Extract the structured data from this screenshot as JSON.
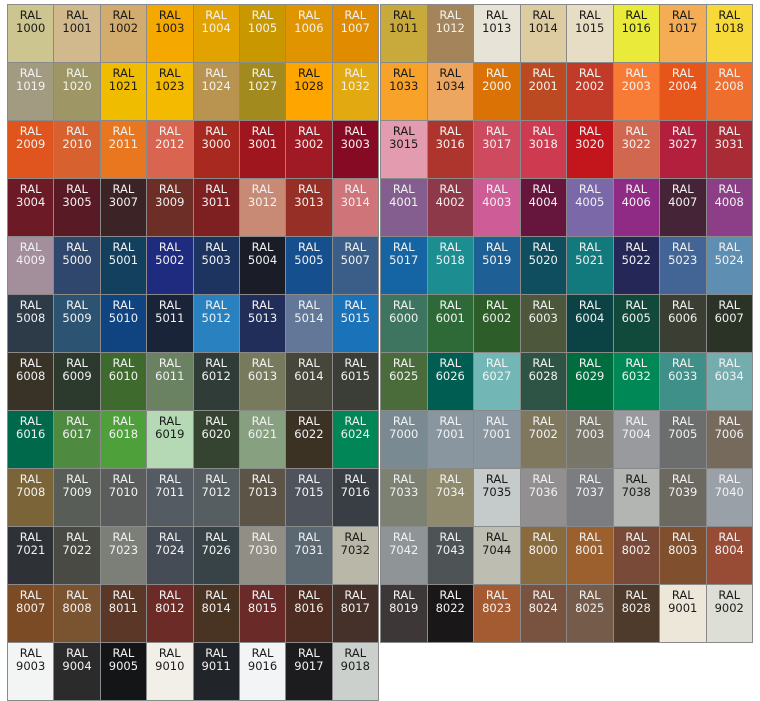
{
  "prefix": "RAL",
  "left_panel": [
    [
      {
        "c": "1000",
        "bg": "#CCC58F",
        "t": "dark"
      },
      {
        "c": "1001",
        "bg": "#D1B98D",
        "t": "dark"
      },
      {
        "c": "1002",
        "bg": "#D2AB6E",
        "t": "dark"
      },
      {
        "c": "1003",
        "bg": "#F5A800",
        "t": "dark"
      },
      {
        "c": "1004",
        "bg": "#E2A300",
        "t": "light"
      },
      {
        "c": "1005",
        "bg": "#C99700",
        "t": "light"
      },
      {
        "c": "1006",
        "bg": "#E09500",
        "t": "light"
      },
      {
        "c": "1007",
        "bg": "#E08B00",
        "t": "light"
      }
    ],
    [
      {
        "c": "1019",
        "bg": "#A39A82",
        "t": "light"
      },
      {
        "c": "1020",
        "bg": "#9E9664",
        "t": "light"
      },
      {
        "c": "1021",
        "bg": "#F0BC00",
        "t": "dark"
      },
      {
        "c": "1023",
        "bg": "#F3BA00",
        "t": "dark"
      },
      {
        "c": "1024",
        "bg": "#B99350",
        "t": "light"
      },
      {
        "c": "1027",
        "bg": "#A38A1E",
        "t": "light"
      },
      {
        "c": "1028",
        "bg": "#FFA500",
        "t": "dark"
      },
      {
        "c": "1032",
        "bg": "#E2A910",
        "t": "light"
      }
    ],
    [
      {
        "c": "2009",
        "bg": "#E0551D",
        "t": "light"
      },
      {
        "c": "2010",
        "bg": "#D8622F",
        "t": "light"
      },
      {
        "c": "2011",
        "bg": "#E9771F",
        "t": "light"
      },
      {
        "c": "2012",
        "bg": "#D9644F",
        "t": "light"
      },
      {
        "c": "3000",
        "bg": "#A72920",
        "t": "light"
      },
      {
        "c": "3001",
        "bg": "#A0161F",
        "t": "light"
      },
      {
        "c": "3002",
        "bg": "#A01A25",
        "t": "light"
      },
      {
        "c": "3003",
        "bg": "#870A24",
        "t": "light"
      }
    ],
    [
      {
        "c": "3004",
        "bg": "#6B1A26",
        "t": "light"
      },
      {
        "c": "3005",
        "bg": "#581A25",
        "t": "light"
      },
      {
        "c": "3007",
        "bg": "#3C2325",
        "t": "light"
      },
      {
        "c": "3009",
        "bg": "#6C2E27",
        "t": "light"
      },
      {
        "c": "3011",
        "bg": "#7E1F21",
        "t": "light"
      },
      {
        "c": "3012",
        "bg": "#C88A74",
        "t": "light"
      },
      {
        "c": "3013",
        "bg": "#962F25",
        "t": "light"
      },
      {
        "c": "3014",
        "bg": "#CF7479",
        "t": "light"
      }
    ],
    [
      {
        "c": "4009",
        "bg": "#A38E9C",
        "t": "light"
      },
      {
        "c": "5000",
        "bg": "#30476D",
        "t": "light"
      },
      {
        "c": "5001",
        "bg": "#13405E",
        "t": "light"
      },
      {
        "c": "5002",
        "bg": "#1E2B7E",
        "t": "light"
      },
      {
        "c": "5003",
        "bg": "#1D3461",
        "t": "light"
      },
      {
        "c": "5004",
        "bg": "#1A1D28",
        "t": "light"
      },
      {
        "c": "5005",
        "bg": "#154F8E",
        "t": "light"
      },
      {
        "c": "5007",
        "bg": "#3B5E88",
        "t": "light"
      }
    ],
    [
      {
        "c": "5008",
        "bg": "#2D3B49",
        "t": "light"
      },
      {
        "c": "5009",
        "bg": "#2C5472",
        "t": "light"
      },
      {
        "c": "5010",
        "bg": "#0F4480",
        "t": "light"
      },
      {
        "c": "5011",
        "bg": "#1A2439",
        "t": "light"
      },
      {
        "c": "5012",
        "bg": "#2981C0",
        "t": "light"
      },
      {
        "c": "5013",
        "bg": "#212E5A",
        "t": "light"
      },
      {
        "c": "5014",
        "bg": "#637899",
        "t": "light"
      },
      {
        "c": "5015",
        "bg": "#1A73B9",
        "t": "light"
      }
    ],
    [
      {
        "c": "6008",
        "bg": "#393327",
        "t": "light"
      },
      {
        "c": "6009",
        "bg": "#2C3A2E",
        "t": "light"
      },
      {
        "c": "6010",
        "bg": "#3E6A2D",
        "t": "light"
      },
      {
        "c": "6011",
        "bg": "#6A8261",
        "t": "light"
      },
      {
        "c": "6012",
        "bg": "#303C37",
        "t": "light"
      },
      {
        "c": "6013",
        "bg": "#787A5E",
        "t": "light"
      },
      {
        "c": "6014",
        "bg": "#46473A",
        "t": "light"
      },
      {
        "c": "6015",
        "bg": "#3B3E36",
        "t": "light"
      }
    ],
    [
      {
        "c": "6016",
        "bg": "#00694C",
        "t": "light"
      },
      {
        "c": "6017",
        "bg": "#4E8A40",
        "t": "light"
      },
      {
        "c": "6018",
        "bg": "#4EA03A",
        "t": "light"
      },
      {
        "c": "6019",
        "bg": "#B4D9B4",
        "t": "dark"
      },
      {
        "c": "6020",
        "bg": "#354431",
        "t": "light"
      },
      {
        "c": "6021",
        "bg": "#87A080",
        "t": "light"
      },
      {
        "c": "6022",
        "bg": "#3B3224",
        "t": "light"
      },
      {
        "c": "6024",
        "bg": "#008657",
        "t": "light"
      }
    ],
    [
      {
        "c": "7008",
        "bg": "#7B6538",
        "t": "light"
      },
      {
        "c": "7009",
        "bg": "#585D57",
        "t": "light"
      },
      {
        "c": "7010",
        "bg": "#5A5D5C",
        "t": "light"
      },
      {
        "c": "7011",
        "bg": "#545B63",
        "t": "light"
      },
      {
        "c": "7012",
        "bg": "#575E62",
        "t": "light"
      },
      {
        "c": "7013",
        "bg": "#5B5447",
        "t": "light"
      },
      {
        "c": "7015",
        "bg": "#4F535C",
        "t": "light"
      },
      {
        "c": "7016",
        "bg": "#383E44",
        "t": "light"
      }
    ],
    [
      {
        "c": "7021",
        "bg": "#2E3236",
        "t": "light"
      },
      {
        "c": "7022",
        "bg": "#4A4A45",
        "t": "light"
      },
      {
        "c": "7023",
        "bg": "#7C7F78",
        "t": "light"
      },
      {
        "c": "7024",
        "bg": "#464C55",
        "t": "light"
      },
      {
        "c": "7026",
        "bg": "#384348",
        "t": "light"
      },
      {
        "c": "7030",
        "bg": "#918E85",
        "t": "light"
      },
      {
        "c": "7031",
        "bg": "#5B6872",
        "t": "light"
      },
      {
        "c": "7032",
        "bg": "#B9B7A7",
        "t": "dark"
      }
    ],
    [
      {
        "c": "8007",
        "bg": "#7A4B25",
        "t": "light"
      },
      {
        "c": "8008",
        "bg": "#7A5430",
        "t": "light"
      },
      {
        "c": "8011",
        "bg": "#5A3726",
        "t": "light"
      },
      {
        "c": "8012",
        "bg": "#6C2B27",
        "t": "light"
      },
      {
        "c": "8014",
        "bg": "#493423",
        "t": "light"
      },
      {
        "c": "8015",
        "bg": "#6A2A27",
        "t": "light"
      },
      {
        "c": "8016",
        "bg": "#4D2C22",
        "t": "light"
      },
      {
        "c": "8017",
        "bg": "#45302A",
        "t": "light"
      }
    ],
    [
      {
        "c": "9003",
        "bg": "#F3F4F4",
        "t": "dark"
      },
      {
        "c": "9004",
        "bg": "#2B2B2C",
        "t": "light"
      },
      {
        "c": "9005",
        "bg": "#131517",
        "t": "light"
      },
      {
        "c": "9010",
        "bg": "#F1EFE7",
        "t": "dark"
      },
      {
        "c": "9011",
        "bg": "#212428",
        "t": "light"
      },
      {
        "c": "9016",
        "bg": "#F2F4F5",
        "t": "dark"
      },
      {
        "c": "9017",
        "bg": "#1C1C1E",
        "t": "light"
      },
      {
        "c": "9018",
        "bg": "#CBD0CD",
        "t": "dark"
      }
    ]
  ],
  "right_panel": [
    [
      {
        "c": "1011",
        "bg": "#C7A93C",
        "t": "dark"
      },
      {
        "c": "1012",
        "bg": "#A4845A",
        "t": "light"
      },
      {
        "c": "1013",
        "bg": "#E7E3D6",
        "t": "dark"
      },
      {
        "c": "1014",
        "bg": "#DDCBA2",
        "t": "dark"
      },
      {
        "c": "1015",
        "bg": "#E7DCC4",
        "t": "dark"
      },
      {
        "c": "1016",
        "bg": "#EAEA3A",
        "t": "dark"
      },
      {
        "c": "1017",
        "bg": "#F5AD55",
        "t": "dark"
      },
      {
        "c": "1018",
        "bg": "#F8D93A",
        "t": "dark"
      }
    ],
    [
      {
        "c": "1033",
        "bg": "#F9A22A",
        "t": "dark"
      },
      {
        "c": "1034",
        "bg": "#EDA65F",
        "t": "dark"
      },
      {
        "c": "2000",
        "bg": "#DA7206",
        "t": "light"
      },
      {
        "c": "2001",
        "bg": "#BB4A22",
        "t": "light"
      },
      {
        "c": "2002",
        "bg": "#C23A28",
        "t": "light"
      },
      {
        "c": "2003",
        "bg": "#F77B35",
        "t": "light"
      },
      {
        "c": "2004",
        "bg": "#E65519",
        "t": "light"
      },
      {
        "c": "2008",
        "bg": "#EE6E2D",
        "t": "light"
      }
    ],
    [
      {
        "c": "3015",
        "bg": "#E39BAF",
        "t": "dark"
      },
      {
        "c": "3016",
        "bg": "#AE352D",
        "t": "light"
      },
      {
        "c": "3017",
        "bg": "#CE4A5E",
        "t": "light"
      },
      {
        "c": "3018",
        "bg": "#CE3A4F",
        "t": "light"
      },
      {
        "c": "3020",
        "bg": "#C3161C",
        "t": "light"
      },
      {
        "c": "3022",
        "bg": "#D26750",
        "t": "light"
      },
      {
        "c": "3027",
        "bg": "#B3203E",
        "t": "light"
      },
      {
        "c": "3031",
        "bg": "#A82B35",
        "t": "light"
      }
    ],
    [
      {
        "c": "4001",
        "bg": "#845E8F",
        "t": "light"
      },
      {
        "c": "4002",
        "bg": "#8E3949",
        "t": "light"
      },
      {
        "c": "4003",
        "bg": "#CE5C96",
        "t": "light"
      },
      {
        "c": "4004",
        "bg": "#66163D",
        "t": "light"
      },
      {
        "c": "4005",
        "bg": "#7B68A8",
        "t": "light"
      },
      {
        "c": "4006",
        "bg": "#8F2B84",
        "t": "light"
      },
      {
        "c": "4007",
        "bg": "#462437",
        "t": "light"
      },
      {
        "c": "4008",
        "bg": "#8C3F86",
        "t": "light"
      }
    ],
    [
      {
        "c": "5017",
        "bg": "#1565A4",
        "t": "light"
      },
      {
        "c": "5018",
        "bg": "#1C8E92",
        "t": "light"
      },
      {
        "c": "5019",
        "bg": "#1E5F95",
        "t": "light"
      },
      {
        "c": "5020",
        "bg": "#0F4E5E",
        "t": "light"
      },
      {
        "c": "5021",
        "bg": "#127A7C",
        "t": "light"
      },
      {
        "c": "5022",
        "bg": "#252856",
        "t": "light"
      },
      {
        "c": "5023",
        "bg": "#436596",
        "t": "light"
      },
      {
        "c": "5024",
        "bg": "#5E8EB2",
        "t": "light"
      }
    ],
    [
      {
        "c": "6000",
        "bg": "#3D7560",
        "t": "light"
      },
      {
        "c": "6001",
        "bg": "#2D6A37",
        "t": "light"
      },
      {
        "c": "6002",
        "bg": "#2D5E2A",
        "t": "light"
      },
      {
        "c": "6003",
        "bg": "#4C573C",
        "t": "light"
      },
      {
        "c": "6004",
        "bg": "#0B4345",
        "t": "light"
      },
      {
        "c": "6005",
        "bg": "#114A3B",
        "t": "light"
      },
      {
        "c": "6006",
        "bg": "#3A3E33",
        "t": "light"
      },
      {
        "c": "6007",
        "bg": "#2B3226",
        "t": "light"
      }
    ],
    [
      {
        "c": "6025",
        "bg": "#4A6C3A",
        "t": "light"
      },
      {
        "c": "6026",
        "bg": "#005D51",
        "t": "light"
      },
      {
        "c": "6027",
        "bg": "#72B7B5",
        "t": "light"
      },
      {
        "c": "6028",
        "bg": "#2E5446",
        "t": "light"
      },
      {
        "c": "6029",
        "bg": "#006D3F",
        "t": "light"
      },
      {
        "c": "6032",
        "bg": "#008856",
        "t": "light"
      },
      {
        "c": "6033",
        "bg": "#40908A",
        "t": "light"
      },
      {
        "c": "6034",
        "bg": "#75ADAF",
        "t": "light"
      }
    ],
    [
      {
        "c": "7000",
        "bg": "#7A8A93",
        "t": "light"
      },
      {
        "c": "7001",
        "bg": "#8A969F",
        "t": "light"
      },
      {
        "c": "7001",
        "bg": "#8A969F",
        "t": "light"
      },
      {
        "c": "7002",
        "bg": "#80785E",
        "t": "light"
      },
      {
        "c": "7003",
        "bg": "#777669",
        "t": "light"
      },
      {
        "c": "7004",
        "bg": "#999A9E",
        "t": "light"
      },
      {
        "c": "7005",
        "bg": "#6B6E6C",
        "t": "light"
      },
      {
        "c": "7006",
        "bg": "#766A5D",
        "t": "light"
      }
    ],
    [
      {
        "c": "7033",
        "bg": "#7C8172",
        "t": "light"
      },
      {
        "c": "7034",
        "bg": "#8F8A6D",
        "t": "light"
      },
      {
        "c": "7035",
        "bg": "#C5CACA",
        "t": "dark"
      },
      {
        "c": "7036",
        "bg": "#928F90",
        "t": "light"
      },
      {
        "c": "7037",
        "bg": "#7B7D80",
        "t": "light"
      },
      {
        "c": "7038",
        "bg": "#B3B5B2",
        "t": "dark"
      },
      {
        "c": "7039",
        "bg": "#6C6960",
        "t": "light"
      },
      {
        "c": "7040",
        "bg": "#9AA0A8",
        "t": "light"
      }
    ],
    [
      {
        "c": "7042",
        "bg": "#8F9497",
        "t": "light"
      },
      {
        "c": "7043",
        "bg": "#4E5356",
        "t": "light"
      },
      {
        "c": "7044",
        "bg": "#BDBDB1",
        "t": "dark"
      },
      {
        "c": "8000",
        "bg": "#8A6B3E",
        "t": "light"
      },
      {
        "c": "8001",
        "bg": "#9B602E",
        "t": "light"
      },
      {
        "c": "8002",
        "bg": "#7A4A39",
        "t": "light"
      },
      {
        "c": "8003",
        "bg": "#80502E",
        "t": "light"
      },
      {
        "c": "8004",
        "bg": "#984B35",
        "t": "light"
      }
    ],
    [
      {
        "c": "8019",
        "bg": "#3E3737",
        "t": "light"
      },
      {
        "c": "8022",
        "bg": "#1A1718",
        "t": "light"
      },
      {
        "c": "8023",
        "bg": "#A55B32",
        "t": "light"
      },
      {
        "c": "8024",
        "bg": "#7A5340",
        "t": "light"
      },
      {
        "c": "8025",
        "bg": "#755C4A",
        "t": "light"
      },
      {
        "c": "8028",
        "bg": "#4E3B2B",
        "t": "light"
      },
      {
        "c": "9001",
        "bg": "#EDE7DA",
        "t": "dark"
      },
      {
        "c": "9002",
        "bg": "#DDDED6",
        "t": "dark"
      }
    ]
  ]
}
